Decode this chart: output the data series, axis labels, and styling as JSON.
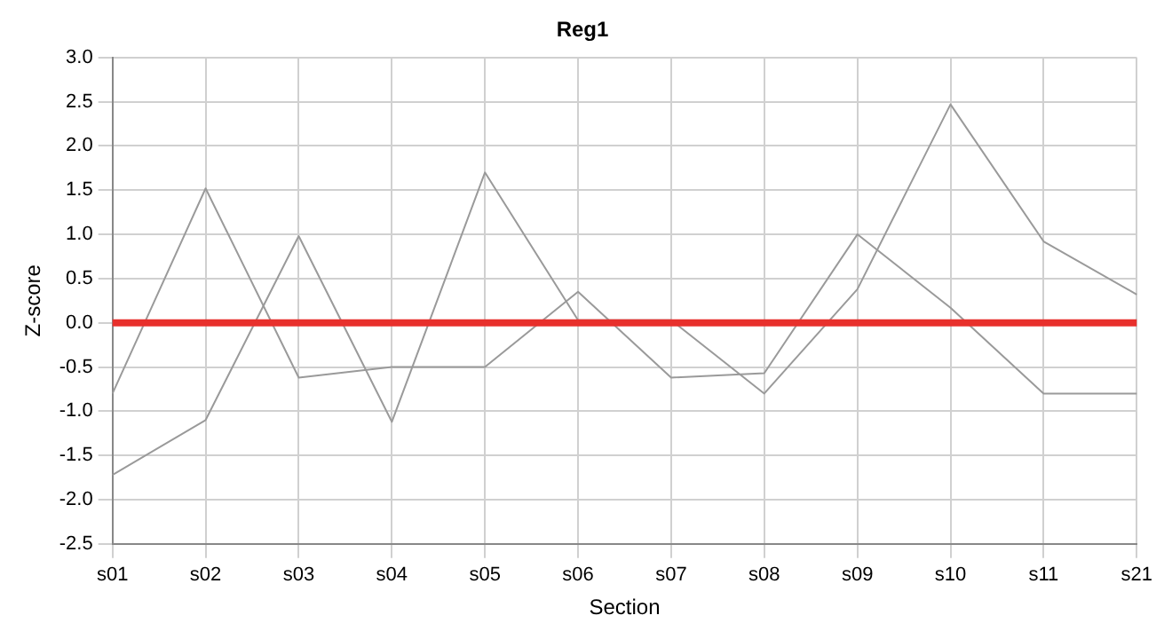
{
  "chart_data": {
    "type": "line",
    "title": "Reg1",
    "xlabel": "Section",
    "ylabel": "Z-score",
    "categories": [
      "s01",
      "s02",
      "s03",
      "s04",
      "s05",
      "s06",
      "s07",
      "s08",
      "s09",
      "s10",
      "s11",
      "s21"
    ],
    "series": [
      {
        "color": "#9a9a9a",
        "values": [
          -1.72,
          -1.1,
          0.98,
          -1.12,
          1.7,
          0.03,
          0.03,
          -0.8,
          0.38,
          2.47,
          0.92,
          0.32
        ]
      },
      {
        "color": "#9a9a9a",
        "values": [
          -0.8,
          1.52,
          -0.62,
          -0.5,
          -0.5,
          0.35,
          -0.62,
          -0.57,
          1.0,
          0.17,
          -0.8,
          -0.8
        ]
      }
    ],
    "ylim": [
      -2.5,
      3.0
    ],
    "yticks": [
      {
        "value": -2.5,
        "label": "-2.5"
      },
      {
        "value": -2,
        "label": "-2.0"
      },
      {
        "value": -1.5,
        "label": "-1.5"
      },
      {
        "value": -1,
        "label": "-1.0"
      },
      {
        "value": -0.5,
        "label": "-0.5"
      },
      {
        "value": 0,
        "label": "0.0"
      },
      {
        "value": 0.5,
        "label": "0.5"
      },
      {
        "value": 1,
        "label": "1.0"
      },
      {
        "value": 1.5,
        "label": "1.5"
      },
      {
        "value": 2,
        "label": "2.0"
      },
      {
        "value": 2.5,
        "label": "2.5"
      },
      {
        "value": 3,
        "label": "3.0"
      }
    ],
    "ref_lines": [
      {
        "axis": "y",
        "value": 0,
        "color": "#e8302c"
      }
    ],
    "grid": true,
    "legend": false,
    "marker": "none",
    "line_style": "solid"
  }
}
